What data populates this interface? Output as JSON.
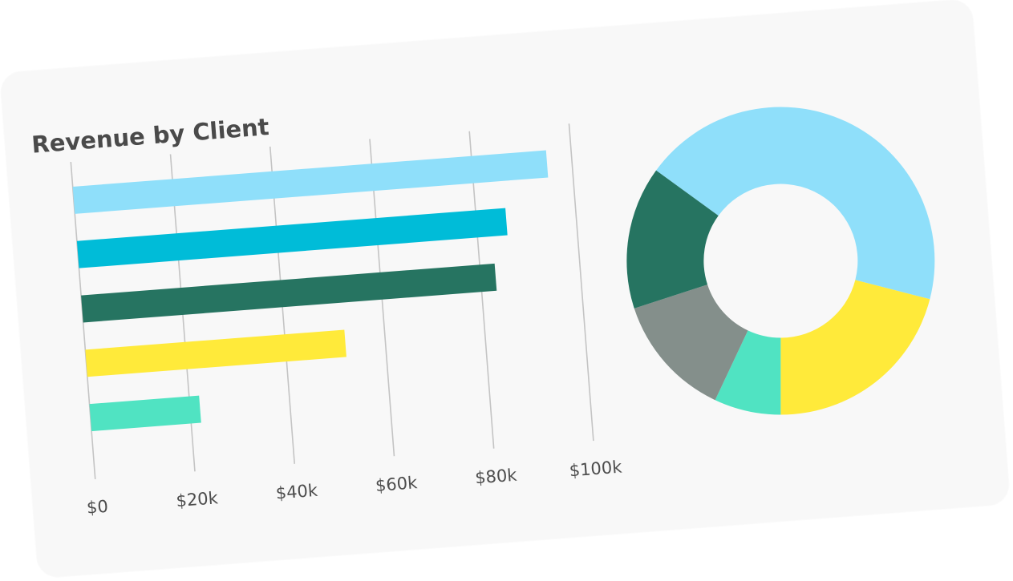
{
  "chart_data": [
    {
      "type": "bar",
      "orientation": "horizontal",
      "title": "Revenue by Client",
      "xlabel": "",
      "ylabel": "",
      "xlim": [
        0,
        100000
      ],
      "x_ticks": [
        0,
        20000,
        40000,
        60000,
        80000,
        100000
      ],
      "x_tick_labels": [
        "$0",
        "$20k",
        "$40k",
        "$60k",
        "$80k",
        "$100k"
      ],
      "grid": true,
      "values": [
        95000,
        86000,
        83000,
        52000,
        22000
      ],
      "colors": [
        "#8fdffa",
        "#00bcd8",
        "#267461",
        "#ffea3a",
        "#50e3c2"
      ]
    },
    {
      "type": "pie",
      "style": "donut",
      "values": [
        44,
        21,
        7,
        13,
        15
      ],
      "colors": [
        "#8fdffa",
        "#ffea3a",
        "#50e3c2",
        "#848f8b",
        "#267461"
      ]
    }
  ]
}
